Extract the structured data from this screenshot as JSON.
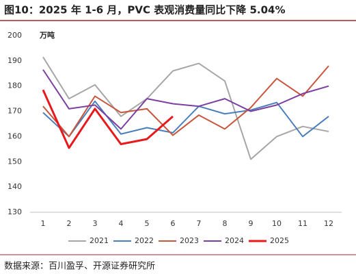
{
  "chart_data": {
    "type": "line",
    "title": "图10：2025 年 1-6 月，PVC 表观消费量同比下降 5.04%",
    "y_label": "万吨",
    "source": "数据来源：百川盈孚、开源证券研究所",
    "categories": [
      "1",
      "2",
      "3",
      "4",
      "5",
      "6",
      "7",
      "8",
      "9",
      "10",
      "11",
      "12"
    ],
    "series": [
      {
        "name": "2021",
        "color": "#a6a6a6",
        "width": 2,
        "values": [
          191.5,
          175,
          180.5,
          168,
          175,
          186,
          189,
          182,
          151,
          160,
          164,
          162
        ]
      },
      {
        "name": "2022",
        "color": "#4a7ebb",
        "width": 2,
        "values": [
          169.5,
          160,
          174,
          161,
          163.5,
          161.5,
          172,
          169,
          170.5,
          173.5,
          160,
          168
        ]
      },
      {
        "name": "2023",
        "color": "#c8553d",
        "width": 2,
        "values": [
          172,
          160,
          176,
          169.5,
          171,
          160.5,
          168.5,
          163,
          171.5,
          183,
          176,
          188
        ]
      },
      {
        "name": "2024",
        "color": "#7b3fa0",
        "width": 2,
        "values": [
          186.5,
          171,
          172.5,
          163,
          175,
          173,
          172,
          175,
          170,
          172.5,
          177,
          180
        ]
      },
      {
        "name": "2025",
        "color": "#e8191c",
        "width": 3,
        "values": [
          178.5,
          155.5,
          171,
          157,
          159,
          168,
          null,
          null,
          null,
          null,
          null,
          null
        ]
      }
    ],
    "ylim": [
      130,
      200
    ],
    "yticks": [
      130,
      140,
      150,
      160,
      170,
      180,
      190,
      200
    ],
    "grid": false
  }
}
